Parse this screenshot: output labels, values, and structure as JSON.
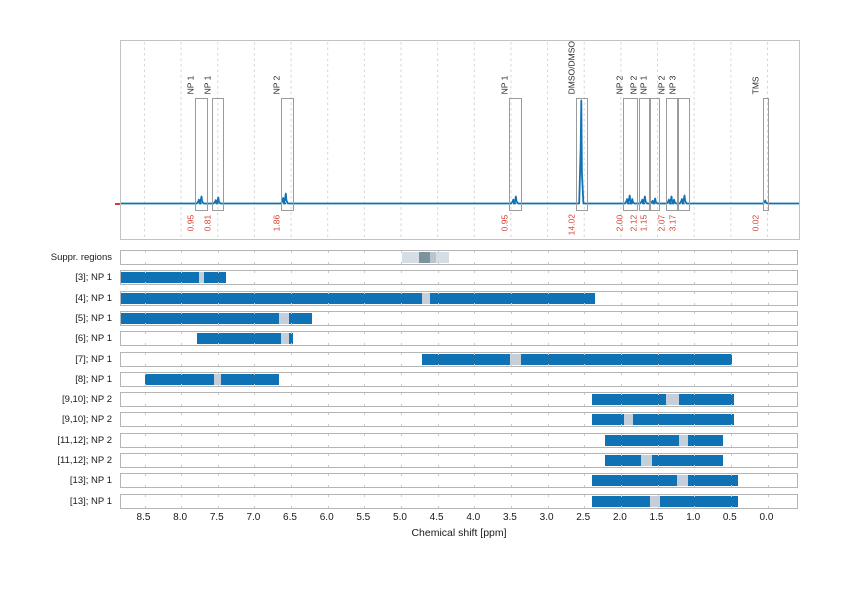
{
  "colors": {
    "region_blue": "#0e72b5",
    "peak_gap_gray": "#c4cfd9",
    "suppr_light": "#d5dee5",
    "suppr_mid": "#b7c6d1",
    "suppr_dark": "#7d929f",
    "spectrum_line": "#0e72b5",
    "integral_red": "#d93e30",
    "grid_gray": "#d6d6d6"
  },
  "chart_data": {
    "type": "line",
    "subtype": "1H-NMR spectrum with integral boxes and assignment region rows",
    "xlabel": "Chemical shift [ppm]",
    "x_axis": {
      "min": -0.43,
      "max": 8.82,
      "reversed": true,
      "tick_values": [
        8.5,
        8.0,
        7.5,
        7.0,
        6.5,
        6.0,
        5.5,
        5.0,
        4.5,
        4.0,
        3.5,
        3.0,
        2.5,
        2.0,
        1.5,
        1.0,
        0.5,
        0.0
      ],
      "tick_labels": [
        "8.5",
        "8.0",
        "7.5",
        "7.0",
        "6.5",
        "6.0",
        "5.5",
        "5.0",
        "4.5",
        "4.0",
        "3.5",
        "3.0",
        "2.5",
        "2.0",
        "1.5",
        "1.0",
        "0.5",
        "0.0"
      ]
    },
    "spectrum_peaks": [
      {
        "label": "NP 1",
        "ppm": 7.74,
        "integral": "0.95",
        "box": [
          7.81,
          7.66
        ],
        "height": 7,
        "humps": 2
      },
      {
        "label": "NP 1",
        "ppm": 7.51,
        "integral": "0.81",
        "box": [
          7.58,
          7.44
        ],
        "height": 6,
        "humps": 2
      },
      {
        "label": "NP 2",
        "ppm": 6.59,
        "integral": "1.86",
        "box": [
          6.64,
          6.49
        ],
        "height": 10,
        "humps": 2
      },
      {
        "label": "NP 1",
        "ppm": 3.45,
        "integral": "0.95",
        "box": [
          3.53,
          3.38
        ],
        "height": 7,
        "humps": 2
      },
      {
        "label": "DMSO/DMSO",
        "ppm": 2.54,
        "integral": "14.02",
        "box": [
          2.61,
          2.47
        ],
        "height": 103,
        "humps": 1
      },
      {
        "label": "NP 2",
        "ppm": 1.88,
        "integral": "2.00",
        "box": [
          1.97,
          1.8
        ],
        "height": 8,
        "humps": 3
      },
      {
        "label": "NP 2",
        "ppm": 1.69,
        "integral": "2.12",
        "box": [
          1.76,
          1.62
        ],
        "height": 7,
        "humps": 2
      },
      {
        "label": "NP 1",
        "ppm": 1.55,
        "integral": "1.15",
        "box": [
          1.62,
          1.49
        ],
        "height": 5,
        "humps": 2
      },
      {
        "label": "NP 2",
        "ppm": 1.31,
        "integral": "2.07",
        "box": [
          1.38,
          1.23
        ],
        "height": 7,
        "humps": 3
      },
      {
        "label": "NP 3",
        "ppm": 1.15,
        "integral": "3.17",
        "box": [
          1.23,
          1.08
        ],
        "height": 8,
        "humps": 2
      },
      {
        "label": "TMS",
        "ppm": 0.03,
        "integral": "0.02",
        "box": [
          0.06,
          0.0
        ],
        "height": 3,
        "humps": 1
      }
    ],
    "rows": [
      {
        "label": "Suppr. regions",
        "segments": [
          {
            "from": 4.99,
            "to": 4.76,
            "type": "suppr_light"
          },
          {
            "from": 4.76,
            "to": 4.6,
            "type": "suppr_dark"
          },
          {
            "from": 4.6,
            "to": 4.52,
            "type": "suppr_mid"
          },
          {
            "from": 4.52,
            "to": 4.34,
            "type": "suppr_light"
          }
        ]
      },
      {
        "label": "[3]; NP 1",
        "segments": [
          {
            "from": 8.82,
            "to": 7.76,
            "type": "region"
          },
          {
            "from": 7.76,
            "to": 7.69,
            "type": "peak_gap"
          },
          {
            "from": 7.69,
            "to": 7.38,
            "type": "region"
          }
        ]
      },
      {
        "label": "[4]; NP 1",
        "segments": [
          {
            "from": 8.82,
            "to": 4.72,
            "type": "region"
          },
          {
            "from": 4.72,
            "to": 4.61,
            "type": "peak_gap"
          },
          {
            "from": 4.61,
            "to": 2.35,
            "type": "region"
          }
        ]
      },
      {
        "label": "[5]; NP 1",
        "segments": [
          {
            "from": 8.82,
            "to": 6.66,
            "type": "region"
          },
          {
            "from": 6.66,
            "to": 6.53,
            "type": "peak_gap"
          },
          {
            "from": 6.53,
            "to": 6.22,
            "type": "region"
          }
        ]
      },
      {
        "label": "[6]; NP 1",
        "segments": [
          {
            "from": 7.78,
            "to": 6.64,
            "type": "region"
          },
          {
            "from": 6.64,
            "to": 6.53,
            "type": "peak_gap"
          },
          {
            "from": 6.53,
            "to": 6.48,
            "type": "region"
          }
        ]
      },
      {
        "label": "[7]; NP 1",
        "segments": [
          {
            "from": 4.72,
            "to": 3.52,
            "type": "region"
          },
          {
            "from": 3.52,
            "to": 3.36,
            "type": "peak_gap"
          },
          {
            "from": 3.36,
            "to": 0.49,
            "type": "region"
          }
        ]
      },
      {
        "label": "[8]; NP 1",
        "segments": [
          {
            "from": 8.5,
            "to": 7.55,
            "type": "region"
          },
          {
            "from": 7.55,
            "to": 7.45,
            "type": "peak_gap"
          },
          {
            "from": 7.45,
            "to": 6.66,
            "type": "region"
          }
        ]
      },
      {
        "label": "[9,10]; NP 2",
        "segments": [
          {
            "from": 2.4,
            "to": 1.38,
            "type": "region"
          },
          {
            "from": 1.38,
            "to": 1.21,
            "type": "peak_gap"
          },
          {
            "from": 1.21,
            "to": 0.45,
            "type": "region"
          }
        ]
      },
      {
        "label": "[9,10]; NP 2",
        "segments": [
          {
            "from": 2.4,
            "to": 1.96,
            "type": "region"
          },
          {
            "from": 1.96,
            "to": 1.83,
            "type": "peak_gap"
          },
          {
            "from": 1.83,
            "to": 0.45,
            "type": "region"
          }
        ]
      },
      {
        "label": "[11,12]; NP 2",
        "segments": [
          {
            "from": 2.22,
            "to": 1.21,
            "type": "region"
          },
          {
            "from": 1.21,
            "to": 1.08,
            "type": "peak_gap"
          },
          {
            "from": 1.08,
            "to": 0.6,
            "type": "region"
          }
        ]
      },
      {
        "label": "[11,12]; NP 2",
        "segments": [
          {
            "from": 2.22,
            "to": 1.72,
            "type": "region"
          },
          {
            "from": 1.72,
            "to": 1.58,
            "type": "peak_gap"
          },
          {
            "from": 1.58,
            "to": 0.6,
            "type": "region"
          }
        ]
      },
      {
        "label": "[13]; NP 1",
        "segments": [
          {
            "from": 2.4,
            "to": 1.24,
            "type": "region"
          },
          {
            "from": 1.24,
            "to": 1.09,
            "type": "peak_gap"
          },
          {
            "from": 1.09,
            "to": 0.4,
            "type": "region"
          }
        ]
      },
      {
        "label": "[13]; NP 1",
        "segments": [
          {
            "from": 2.4,
            "to": 1.6,
            "type": "region"
          },
          {
            "from": 1.6,
            "to": 1.47,
            "type": "peak_gap"
          },
          {
            "from": 1.47,
            "to": 0.4,
            "type": "region"
          }
        ]
      }
    ]
  }
}
